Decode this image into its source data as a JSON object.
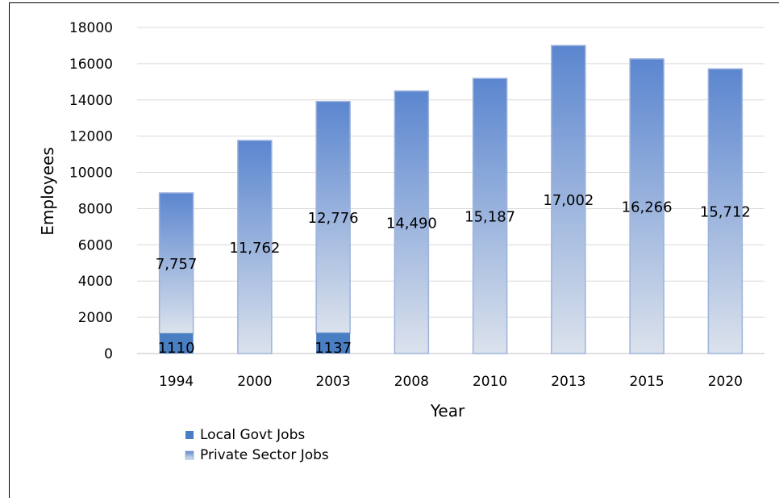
{
  "chart_data": {
    "type": "bar",
    "stacked": true,
    "xlabel": "Year",
    "ylabel": "Employees",
    "ylim": [
      0,
      18000
    ],
    "yticks": [
      "0",
      "2000",
      "4000",
      "6000",
      "8000",
      "10000",
      "12000",
      "14000",
      "16000",
      "18000"
    ],
    "grid": true,
    "legend_position": "bottom-left",
    "categories": [
      "1994",
      "2000",
      "2003",
      "2008",
      "2010",
      "2013",
      "2015",
      "2020"
    ],
    "series": [
      {
        "name": "Local Govt Jobs",
        "values": [
          1110,
          0,
          1137,
          0,
          0,
          0,
          0,
          0
        ],
        "labels": [
          "1110",
          "",
          "1137",
          "",
          "",
          "",
          "",
          ""
        ],
        "color": "#4a7ec2"
      },
      {
        "name": "Private Sector Jobs",
        "values": [
          7757,
          11762,
          12776,
          14490,
          15187,
          17002,
          16266,
          15712
        ],
        "labels": [
          "7,757",
          "11,762",
          "12,776",
          "14,490",
          "15,187",
          "17,002",
          "16,266",
          "15,712"
        ],
        "color_top": "#5b86cf",
        "color_bottom": "#dbe2ec"
      }
    ]
  }
}
